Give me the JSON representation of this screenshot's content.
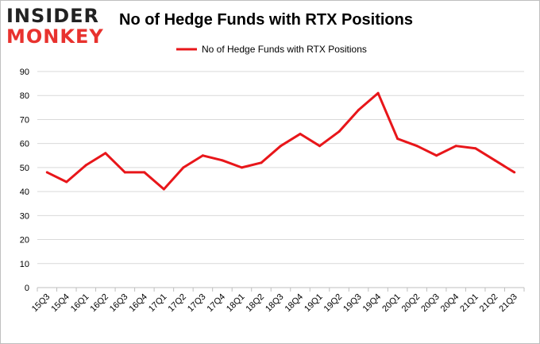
{
  "logo": {
    "top": "INSIDER",
    "bottom": "MONKEY"
  },
  "colors": {
    "line": "#e8161a",
    "grid": "#d9d9d9",
    "axis": "#bfbfbf",
    "border": "#bfbfbf"
  },
  "chart_data": {
    "type": "line",
    "title": "No of Hedge Funds with RTX Positions",
    "xlabel": "",
    "ylabel": "",
    "ylim": [
      0,
      90
    ],
    "yticks": [
      0,
      10,
      20,
      30,
      40,
      50,
      60,
      70,
      80,
      90
    ],
    "grid": true,
    "legend_position": "top-center",
    "categories": [
      "15Q3",
      "15Q4",
      "16Q1",
      "16Q2",
      "16Q3",
      "16Q4",
      "17Q1",
      "17Q2",
      "17Q3",
      "17Q4",
      "18Q1",
      "18Q2",
      "18Q3",
      "18Q4",
      "19Q1",
      "19Q2",
      "19Q3",
      "19Q4",
      "20Q1",
      "20Q2",
      "20Q3",
      "20Q4",
      "21Q1",
      "21Q2",
      "21Q3"
    ],
    "series": [
      {
        "name": "No of Hedge Funds with RTX Positions",
        "values": [
          48,
          44,
          51,
          56,
          48,
          48,
          41,
          50,
          55,
          53,
          50,
          52,
          59,
          64,
          59,
          65,
          74,
          81,
          62,
          59,
          55,
          59,
          58,
          53,
          48
        ]
      }
    ]
  }
}
